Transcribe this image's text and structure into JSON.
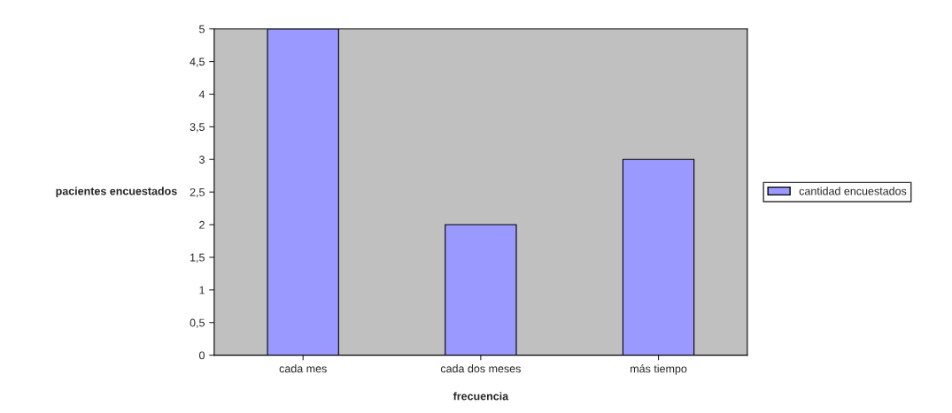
{
  "chart_data": {
    "type": "bar",
    "xlabel": "frecuencia",
    "ylabel": "pacientes encuestados",
    "categories": [
      "cada mes",
      "cada dos meses",
      "más tiempo"
    ],
    "series": [
      {
        "name": "cantidad encuestados",
        "color": "#9999ff",
        "values": [
          5,
          2,
          3
        ]
      }
    ],
    "ylim": [
      0,
      5
    ],
    "yticks": [
      0,
      {
        "value": 0.5,
        "label": "0,5"
      },
      1,
      {
        "value": 1.5,
        "label": "1,5"
      },
      2,
      {
        "value": 2.5,
        "label": "2,5"
      },
      3,
      {
        "value": 3.5,
        "label": "3,5"
      },
      4,
      {
        "value": 4.5,
        "label": "4,5"
      },
      5
    ],
    "grid": false,
    "legend": "right"
  }
}
